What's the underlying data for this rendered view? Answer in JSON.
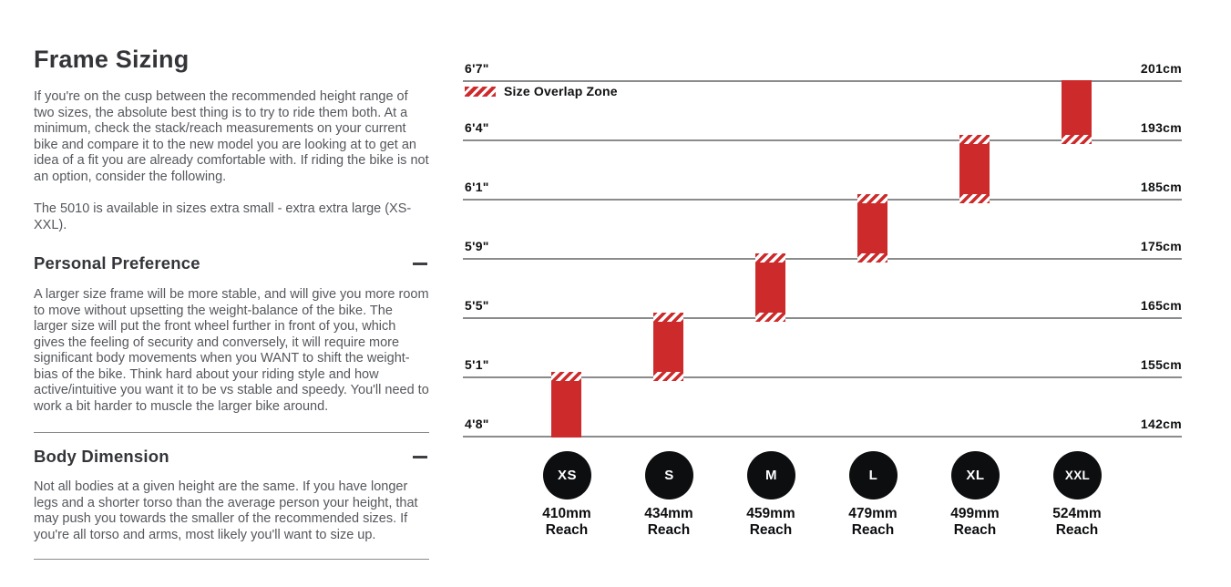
{
  "page": {
    "title": "Frame Sizing",
    "intro": "If you're on the cusp between the recommended height range of two sizes, the absolute best thing is to try to ride them both. At a minimum, check the stack/reach measurements on your current bike and compare it to the new model you are looking at to get an idea of a fit you are already comfortable with. If riding the bike is not an option, consider the following.",
    "availability": "The 5010 is available in sizes extra small - extra extra large (XS-XXL).",
    "sections": [
      {
        "heading": "Personal Preference",
        "state": "expanded",
        "toggle_icon": "minus",
        "body": "A larger size frame will be more stable, and will give you more room to move without upsetting the weight-balance of the bike. The larger size will put the front wheel further in front of you, which gives the feeling of security and conversely, it will require more significant body movements when you WANT to shift the weight-bias of the bike. Think hard about your riding style and how active/intuitive you want it to be vs stable and speedy. You'll need to work a bit harder to muscle the larger bike around."
      },
      {
        "heading": "Body Dimension",
        "state": "expanded",
        "toggle_icon": "minus",
        "body": "Not all bodies at a given height are the same. If you have longer legs and a shorter torso than the average person your height, that may push you towards the smaller of the recommended sizes. If you're all torso and arms, most likely you'll want to size up."
      }
    ]
  },
  "chart_data": {
    "type": "bar",
    "subtype": "floating-height-ranges",
    "title": "",
    "legend": {
      "label": "Size Overlap Zone",
      "swatch": "red-diagonal-hatch",
      "position": "top-left"
    },
    "colors": {
      "bar_red": "#cd2b2b",
      "gridline_gray": "#8a8b8d",
      "circle_black": "#0d0e10",
      "text_black": "#0e0f11"
    },
    "grid": "horizontal-lines-only",
    "ylim_cm": [
      142,
      201
    ],
    "gridlines": [
      {
        "ft": "6'7\"",
        "cm_label": "201cm",
        "cm": 201
      },
      {
        "ft": "6'4\"",
        "cm_label": "193cm",
        "cm": 193
      },
      {
        "ft": "6'1\"",
        "cm_label": "185cm",
        "cm": 185
      },
      {
        "ft": "5'9\"",
        "cm_label": "175cm",
        "cm": 175
      },
      {
        "ft": "5'5\"",
        "cm_label": "165cm",
        "cm": 165
      },
      {
        "ft": "5'1\"",
        "cm_label": "155cm",
        "cm": 155
      },
      {
        "ft": "4'8\"",
        "cm_label": "142cm",
        "cm": 142
      }
    ],
    "sizes": [
      {
        "label": "XS",
        "reach": "410mm",
        "reach_caption": "Reach",
        "reach_mm": 410,
        "range_cm": [
          142,
          155
        ],
        "overlap_top": true,
        "overlap_bottom": false
      },
      {
        "label": "S",
        "reach": "434mm",
        "reach_caption": "Reach",
        "reach_mm": 434,
        "range_cm": [
          155,
          165
        ],
        "overlap_top": true,
        "overlap_bottom": true
      },
      {
        "label": "M",
        "reach": "459mm",
        "reach_caption": "Reach",
        "reach_mm": 459,
        "range_cm": [
          165,
          175
        ],
        "overlap_top": true,
        "overlap_bottom": true
      },
      {
        "label": "L",
        "reach": "479mm",
        "reach_caption": "Reach",
        "reach_mm": 479,
        "range_cm": [
          175,
          185
        ],
        "overlap_top": true,
        "overlap_bottom": true
      },
      {
        "label": "XL",
        "reach": "499mm",
        "reach_caption": "Reach",
        "reach_mm": 499,
        "range_cm": [
          185,
          193
        ],
        "overlap_top": true,
        "overlap_bottom": true
      },
      {
        "label": "XXL",
        "reach": "524mm",
        "reach_caption": "Reach",
        "reach_mm": 524,
        "range_cm": [
          193,
          201
        ],
        "overlap_top": false,
        "overlap_bottom": true
      }
    ]
  }
}
